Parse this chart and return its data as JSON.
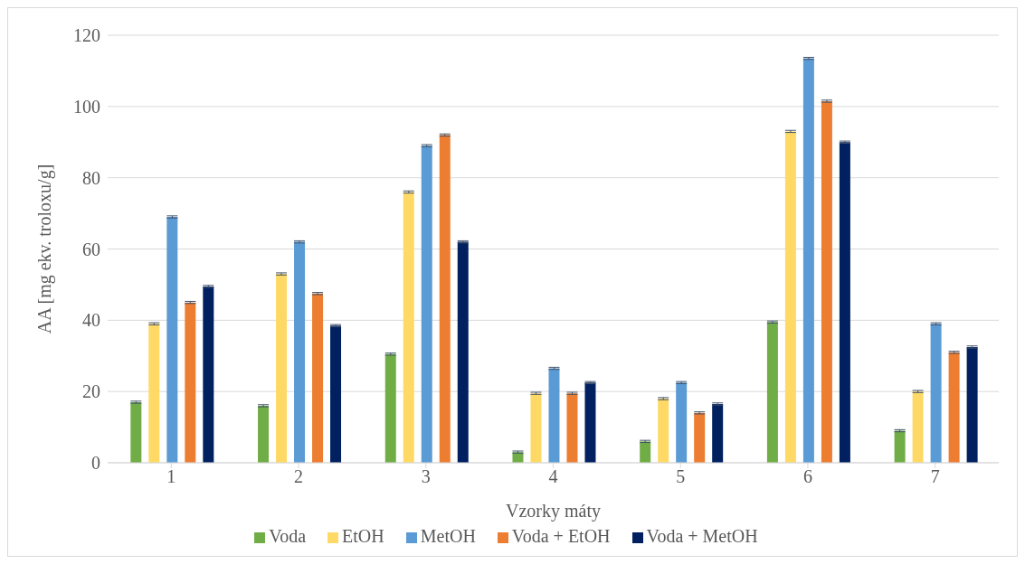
{
  "chart_data": {
    "type": "bar",
    "xlabel": "Vzorky máty",
    "ylabel": "AA [mg ekv. troloxu/g]",
    "categories": [
      "1",
      "2",
      "3",
      "4",
      "5",
      "6",
      "7"
    ],
    "series": [
      {
        "name": "Voda",
        "color": "#70ad47",
        "values": [
          17,
          16,
          30.5,
          3,
          6,
          39.5,
          9
        ],
        "errors": [
          0.3,
          0.3,
          0.3,
          0.3,
          0.3,
          0.3,
          0.3
        ]
      },
      {
        "name": "EtOH",
        "color": "#ffd966",
        "values": [
          39,
          53,
          76,
          19.5,
          18,
          93,
          20
        ],
        "errors": [
          0.3,
          0.3,
          0.3,
          0.3,
          0.3,
          0.3,
          0.3
        ]
      },
      {
        "name": "MetOH",
        "color": "#5b9bd5",
        "values": [
          69,
          62,
          89,
          26.5,
          22.5,
          113.5,
          39
        ],
        "errors": [
          0.3,
          0.3,
          0.3,
          0.3,
          0.3,
          0.3,
          0.3
        ]
      },
      {
        "name": "Voda + EtOH",
        "color": "#ed7d31",
        "values": [
          45,
          47.5,
          92,
          19.5,
          14,
          101.5,
          31
        ],
        "errors": [
          0.3,
          0.3,
          0.3,
          0.3,
          0.3,
          0.3,
          0.3
        ]
      },
      {
        "name": "Voda + MetOH",
        "color": "#002060",
        "values": [
          49.5,
          38.5,
          62,
          22.5,
          16.5,
          90,
          32.5
        ],
        "errors": [
          0.3,
          0.3,
          0.3,
          0.3,
          0.3,
          0.3,
          0.3
        ]
      }
    ],
    "ylim": [
      0,
      120
    ],
    "yticks": [
      0,
      20,
      40,
      60,
      80,
      100,
      120
    ],
    "grid": "y",
    "legend": "bottom"
  }
}
